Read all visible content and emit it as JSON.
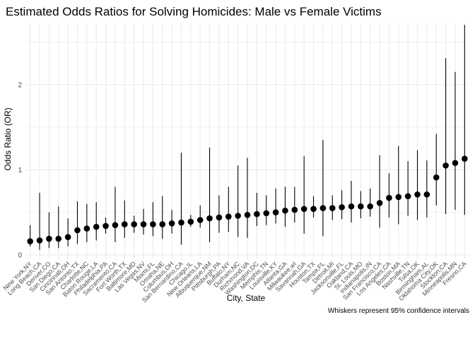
{
  "chart_data": {
    "type": "scatter",
    "title": "Estimated Odds Ratios for Solving Homicides: Male vs Female Victims",
    "xlabel": "City, State",
    "ylabel": "Odds Ratio (OR)",
    "caption": "Whiskers represent 95% confidence intervals",
    "ylim": [
      -0.05,
      2.72
    ],
    "y_ticks": [
      0,
      1,
      2
    ],
    "grid": true,
    "legend": "none",
    "point_color": "#000000",
    "categories": [
      "New York,NY",
      "Long Beach,CA",
      "Denver,CO",
      "San Diego,CA",
      "Cincinnati,OH",
      "San Antonio,TX",
      "Charlotte,NC",
      "Baton Rouge,LA",
      "Philadelphia,PA",
      "Sacramento,CA",
      "Fort Worth,TX",
      "Baltimore,MD",
      "Las Vegas,NV",
      "Miami,FL",
      "Omaha,NE",
      "Columbus,OH",
      "San Bernardino,CA",
      "Chicago,IL",
      "New Orleans,LA",
      "Albuquerque,NM",
      "Pittsburgh,PA",
      "Buffalo,NY",
      "Durham,NC",
      "Richmond,VA",
      "Washington,DC",
      "Memphis,TN",
      "Louisville,KY",
      "Atlanta,GA",
      "Milwaukee,wI",
      "Savannah,GA",
      "Houston,TX",
      "Tampa,FL",
      "Detroit,MI",
      "Jacksonville,FL",
      "Oakland,CA",
      "St. Louis,MO",
      "Indianapolis,IN",
      "San Francisco,CA",
      "Los Angeles,CA",
      "Boston,MA",
      "Nashville,TN",
      "Tulsa,OK",
      "Birmingham,AL",
      "Oklahoma City,OK",
      "Stockton,CA",
      "Minneapolis,MN",
      "Fresno,CA"
    ],
    "series": [
      {
        "or": [
          0.16,
          0.17,
          0.19,
          0.19,
          0.21,
          0.29,
          0.31,
          0.33,
          0.34,
          0.35,
          0.36,
          0.36,
          0.36,
          0.36,
          0.36,
          0.37,
          0.38,
          0.39,
          0.41,
          0.43,
          0.44,
          0.45,
          0.46,
          0.47,
          0.48,
          0.49,
          0.5,
          0.52,
          0.53,
          0.54,
          0.54,
          0.55,
          0.55,
          0.56,
          0.57,
          0.57,
          0.57,
          0.61,
          0.67,
          0.68,
          0.69,
          0.71,
          0.71,
          0.91,
          1.05,
          1.08,
          1.13
        ],
        "lower": [
          0.1,
          0.06,
          0.08,
          0.08,
          0.1,
          0.13,
          0.15,
          0.17,
          0.25,
          0.15,
          0.2,
          0.26,
          0.24,
          0.22,
          0.19,
          0.25,
          0.12,
          0.33,
          0.32,
          0.15,
          0.26,
          0.27,
          0.21,
          0.2,
          0.34,
          0.35,
          0.37,
          0.33,
          0.38,
          0.25,
          0.44,
          0.22,
          0.41,
          0.42,
          0.38,
          0.43,
          0.45,
          0.32,
          0.44,
          0.36,
          0.46,
          0.41,
          0.44,
          0.58,
          0.48,
          0.53,
          0.47
        ],
        "upper": [
          0.35,
          0.73,
          0.5,
          0.57,
          0.43,
          0.63,
          0.6,
          0.62,
          0.44,
          0.8,
          0.64,
          0.46,
          0.54,
          0.62,
          0.69,
          0.53,
          1.2,
          0.47,
          0.58,
          1.26,
          0.7,
          0.8,
          1.05,
          1.14,
          0.73,
          0.7,
          0.78,
          0.8,
          0.8,
          1.16,
          0.69,
          1.35,
          0.7,
          0.76,
          0.87,
          0.75,
          0.78,
          1.17,
          0.96,
          1.28,
          1.1,
          1.23,
          1.11,
          1.42,
          2.31,
          2.15,
          2.7
        ]
      }
    ]
  }
}
